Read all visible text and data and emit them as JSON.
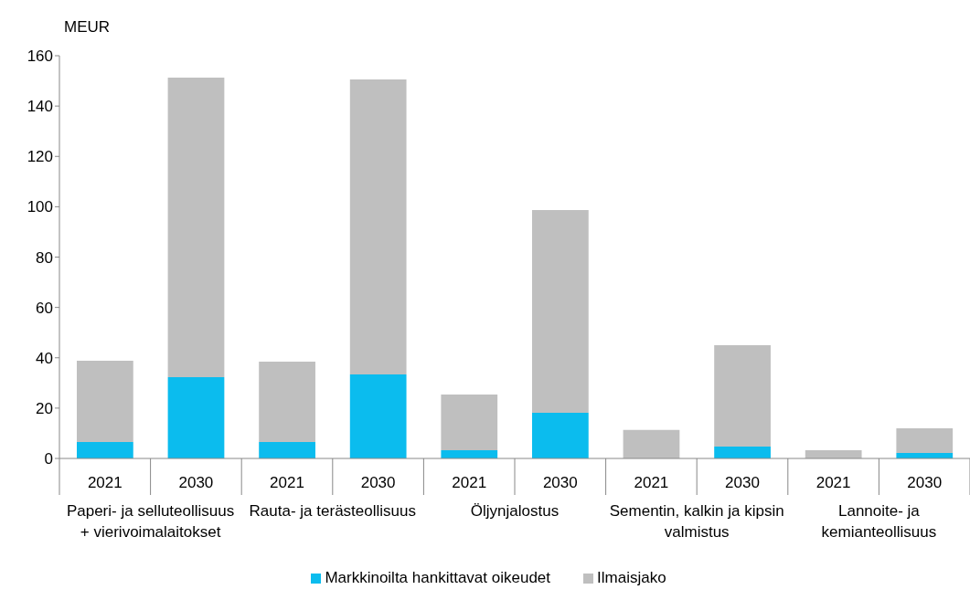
{
  "chart_data": {
    "type": "bar",
    "stacked": true,
    "ylabel": "MEUR",
    "categories": [
      "2021",
      "2030",
      "2021",
      "2030",
      "2021",
      "2030",
      "2021",
      "2030",
      "2021",
      "2030"
    ],
    "series": [
      {
        "name": "Markkinoilta hankittavat oikeudet",
        "color": "#0bbcee",
        "values": [
          6.5,
          32.3,
          6.5,
          33.4,
          3.3,
          18.1,
          null,
          4.7,
          null,
          2.2
        ]
      },
      {
        "name": "Ilmaisjako",
        "color": "#bfbfbf",
        "values": [
          32.3,
          119,
          32,
          117.2,
          22.1,
          80.6,
          11.3,
          40.3,
          3.3,
          9.8
        ]
      }
    ],
    "annotations": [
      "Paperi- ja selluteollisuus + vierivoimalaitokset",
      "Rauta- ja terästeollisuus",
      "Öljynjalostus",
      "Sementin, kalkin ja kipsin valmistus",
      "Lannoite- ja kemianteollisuus"
    ],
    "ylim": [
      0,
      160
    ],
    "yticks": [
      0,
      20,
      40,
      60,
      80,
      100,
      120,
      140,
      160
    ],
    "grid": false,
    "legend": "bottom"
  }
}
